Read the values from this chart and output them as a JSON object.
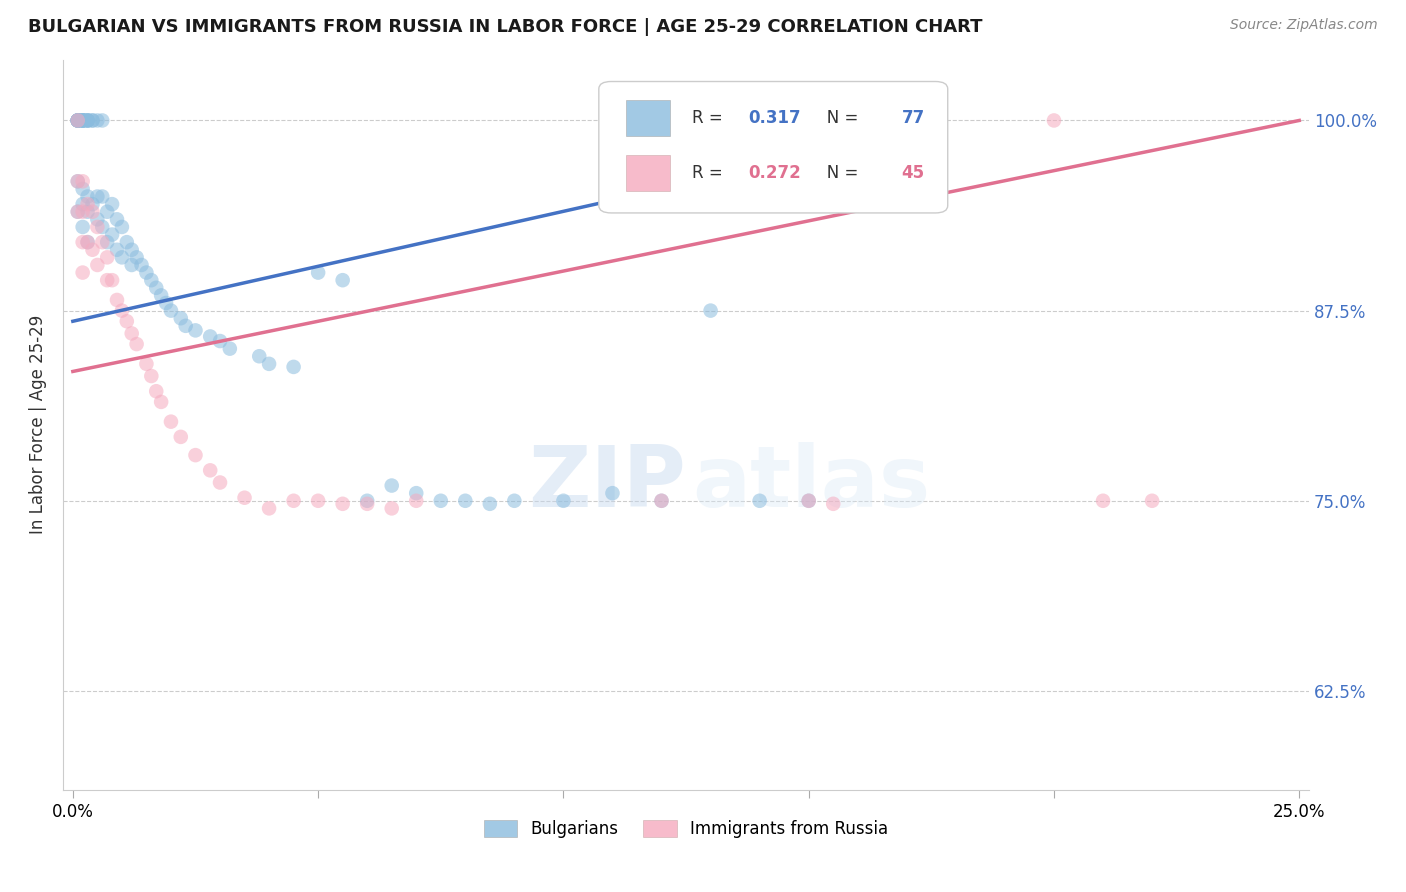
{
  "title": "BULGARIAN VS IMMIGRANTS FROM RUSSIA IN LABOR FORCE | AGE 25-29 CORRELATION CHART",
  "source": "Source: ZipAtlas.com",
  "ylabel": "In Labor Force | Age 25-29",
  "xlim": [
    -0.002,
    0.252
  ],
  "ylim": [
    0.56,
    1.04
  ],
  "ytick_positions": [
    0.625,
    0.75,
    0.875,
    1.0
  ],
  "ytick_labels": [
    "62.5%",
    "75.0%",
    "87.5%",
    "100.0%"
  ],
  "xtick_positions": [
    0.0,
    0.05,
    0.1,
    0.15,
    0.2,
    0.25
  ],
  "xtick_labels": [
    "0.0%",
    "",
    "",
    "",
    "",
    "25.0%"
  ],
  "blue_color": "#8bbcde",
  "pink_color": "#f5aabf",
  "blue_line_color": "#4472c4",
  "pink_line_color": "#e07090",
  "legend_R_blue": "0.317",
  "legend_N_blue": "77",
  "legend_R_pink": "0.272",
  "legend_N_pink": "45",
  "blue_line_x0": 0.0,
  "blue_line_y0": 0.868,
  "blue_line_x1": 0.155,
  "blue_line_y1": 0.98,
  "pink_line_x0": 0.0,
  "pink_line_y0": 0.835,
  "pink_line_x1": 0.25,
  "pink_line_y1": 1.0,
  "blue_scatter_x": [
    0.001,
    0.001,
    0.001,
    0.001,
    0.001,
    0.001,
    0.001,
    0.001,
    0.001,
    0.002,
    0.002,
    0.002,
    0.002,
    0.002,
    0.002,
    0.002,
    0.002,
    0.002,
    0.003,
    0.003,
    0.003,
    0.003,
    0.003,
    0.003,
    0.003,
    0.004,
    0.004,
    0.004,
    0.005,
    0.005,
    0.005,
    0.006,
    0.006,
    0.006,
    0.007,
    0.007,
    0.008,
    0.008,
    0.009,
    0.009,
    0.01,
    0.01,
    0.011,
    0.012,
    0.012,
    0.013,
    0.014,
    0.015,
    0.016,
    0.017,
    0.018,
    0.019,
    0.02,
    0.022,
    0.023,
    0.025,
    0.028,
    0.03,
    0.032,
    0.038,
    0.04,
    0.045,
    0.05,
    0.055,
    0.06,
    0.065,
    0.07,
    0.075,
    0.08,
    0.085,
    0.09,
    0.1,
    0.11,
    0.12,
    0.13,
    0.14,
    0.15
  ],
  "blue_scatter_y": [
    1.0,
    1.0,
    1.0,
    1.0,
    1.0,
    1.0,
    1.0,
    0.96,
    0.94,
    1.0,
    1.0,
    1.0,
    1.0,
    1.0,
    1.0,
    0.955,
    0.945,
    0.93,
    1.0,
    1.0,
    1.0,
    1.0,
    0.95,
    0.94,
    0.92,
    1.0,
    1.0,
    0.945,
    1.0,
    0.95,
    0.935,
    1.0,
    0.95,
    0.93,
    0.94,
    0.92,
    0.945,
    0.925,
    0.935,
    0.915,
    0.93,
    0.91,
    0.92,
    0.915,
    0.905,
    0.91,
    0.905,
    0.9,
    0.895,
    0.89,
    0.885,
    0.88,
    0.875,
    0.87,
    0.865,
    0.862,
    0.858,
    0.855,
    0.85,
    0.845,
    0.84,
    0.838,
    0.9,
    0.895,
    0.75,
    0.76,
    0.755,
    0.75,
    0.75,
    0.748,
    0.75,
    0.75,
    0.755,
    0.75,
    0.875,
    0.75,
    0.75
  ],
  "pink_scatter_x": [
    0.001,
    0.001,
    0.001,
    0.002,
    0.002,
    0.002,
    0.002,
    0.003,
    0.003,
    0.004,
    0.004,
    0.005,
    0.005,
    0.006,
    0.007,
    0.007,
    0.008,
    0.009,
    0.01,
    0.011,
    0.012,
    0.013,
    0.015,
    0.016,
    0.017,
    0.018,
    0.02,
    0.022,
    0.025,
    0.028,
    0.03,
    0.035,
    0.04,
    0.045,
    0.05,
    0.055,
    0.06,
    0.065,
    0.07,
    0.12,
    0.15,
    0.155,
    0.2,
    0.21,
    0.22
  ],
  "pink_scatter_y": [
    1.0,
    0.96,
    0.94,
    0.96,
    0.94,
    0.92,
    0.9,
    0.945,
    0.92,
    0.94,
    0.915,
    0.93,
    0.905,
    0.92,
    0.91,
    0.895,
    0.895,
    0.882,
    0.875,
    0.868,
    0.86,
    0.853,
    0.84,
    0.832,
    0.822,
    0.815,
    0.802,
    0.792,
    0.78,
    0.77,
    0.762,
    0.752,
    0.745,
    0.75,
    0.75,
    0.748,
    0.748,
    0.745,
    0.75,
    0.75,
    0.75,
    0.748,
    1.0,
    0.75,
    0.75
  ],
  "watermark_zip": "ZIP",
  "watermark_atlas": "atlas",
  "background_color": "#ffffff",
  "grid_color": "#cccccc"
}
